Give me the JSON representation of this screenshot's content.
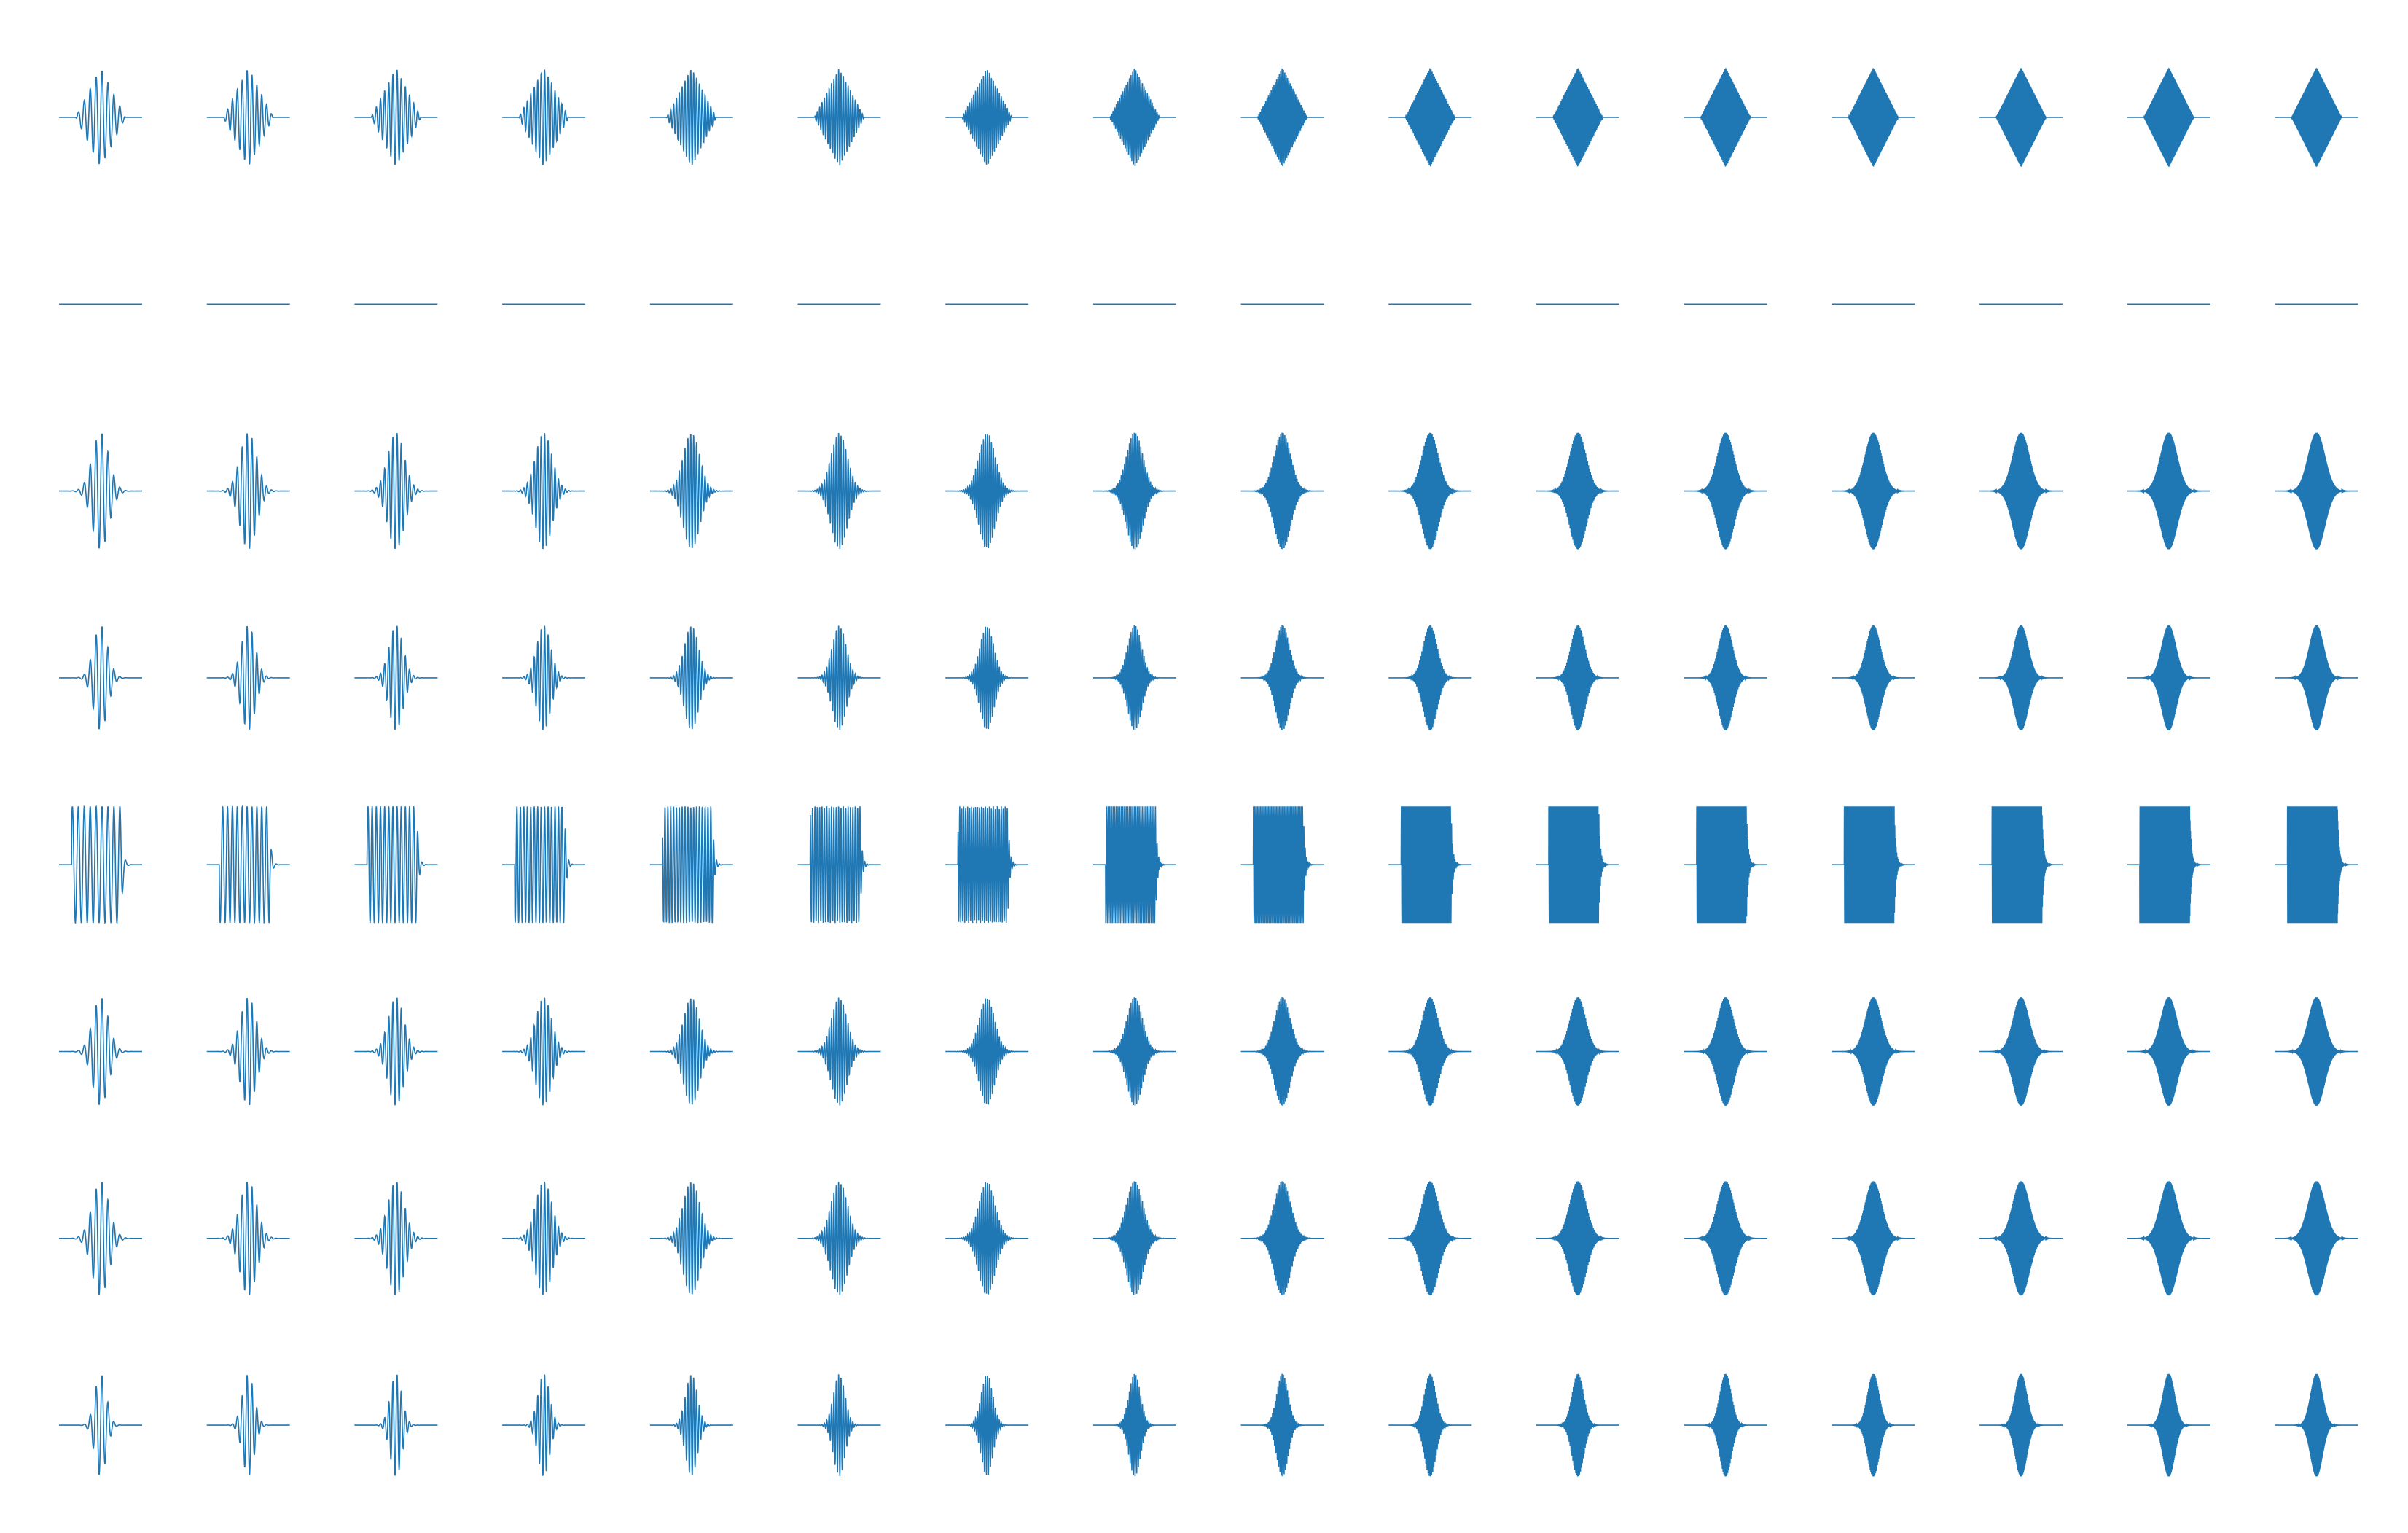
{
  "chart_data": {
    "type": "waveform-grid",
    "color": "#1f77b4",
    "rows": [
      {
        "envelope": "triangle",
        "amplitude": 0.85,
        "width": 0.3
      },
      {
        "envelope": "zero",
        "amplitude": 0,
        "width": 0
      },
      {
        "envelope": "gaussian",
        "amplitude": 1.0,
        "width": 0.1
      },
      {
        "envelope": "gaussian",
        "amplitude": 0.9,
        "width": 0.085
      },
      {
        "envelope": "rectangle",
        "amplitude": 1.0,
        "width": 0.6
      },
      {
        "envelope": "gaussian",
        "amplitude": 0.93,
        "width": 0.095
      },
      {
        "envelope": "gaussian",
        "amplitude": 0.98,
        "width": 0.1
      },
      {
        "envelope": "gaussian",
        "amplitude": 0.88,
        "width": 0.07
      }
    ],
    "cycles": [
      14,
      17,
      20,
      24,
      29,
      35,
      42,
      51,
      61,
      73,
      88,
      106,
      127,
      153,
      183,
      220
    ]
  }
}
